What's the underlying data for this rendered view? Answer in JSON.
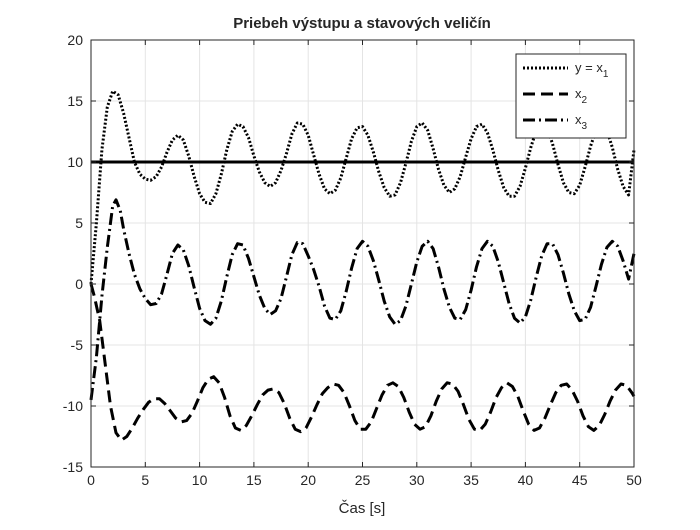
{
  "chart_data": {
    "type": "line",
    "title": "Priebeh výstupu a stavových veličín",
    "xlabel": "Čas [s]",
    "ylabel": "",
    "xlim": [
      0,
      50
    ],
    "ylim": [
      -15,
      20
    ],
    "xticks": [
      0,
      5,
      10,
      15,
      20,
      25,
      30,
      35,
      40,
      45,
      50
    ],
    "yticks": [
      -15,
      -10,
      -5,
      0,
      5,
      10,
      15,
      20
    ],
    "grid": true,
    "legend_position": "top-right",
    "reference_line": {
      "y": 10
    },
    "series": [
      {
        "legend_base": "y = x",
        "legend_sub": "1",
        "style": "dotted",
        "color": "#000000",
        "points": [
          [
            0,
            0
          ],
          [
            0.5,
            5
          ],
          [
            1,
            11
          ],
          [
            1.5,
            14.5
          ],
          [
            2,
            15.8
          ],
          [
            2.5,
            15.5
          ],
          [
            3,
            14
          ],
          [
            3.5,
            12
          ],
          [
            4,
            10
          ],
          [
            4.5,
            9
          ],
          [
            5,
            8.6
          ],
          [
            5.5,
            8.5
          ],
          [
            6,
            8.8
          ],
          [
            6.5,
            9.6
          ],
          [
            7,
            10.8
          ],
          [
            7.5,
            11.8
          ],
          [
            8,
            12.2
          ],
          [
            8.5,
            11.8
          ],
          [
            9,
            10.5
          ],
          [
            9.5,
            8.8
          ],
          [
            10,
            7.4
          ],
          [
            10.5,
            6.7
          ],
          [
            11,
            6.6
          ],
          [
            11.5,
            7.4
          ],
          [
            12,
            9
          ],
          [
            12.5,
            11
          ],
          [
            13,
            12.5
          ],
          [
            13.5,
            13.1
          ],
          [
            14,
            12.9
          ],
          [
            14.5,
            12
          ],
          [
            15,
            10.5
          ],
          [
            15.5,
            9.2
          ],
          [
            16,
            8.3
          ],
          [
            16.5,
            8
          ],
          [
            17,
            8.3
          ],
          [
            17.5,
            9.3
          ],
          [
            18,
            10.7
          ],
          [
            18.5,
            12.3
          ],
          [
            19,
            13.2
          ],
          [
            19.5,
            13.1
          ],
          [
            20,
            12.2
          ],
          [
            20.5,
            10.6
          ],
          [
            21,
            9
          ],
          [
            21.5,
            7.8
          ],
          [
            22,
            7.4
          ],
          [
            22.5,
            7.7
          ],
          [
            23,
            8.7
          ],
          [
            23.5,
            10.3
          ],
          [
            24,
            11.9
          ],
          [
            24.5,
            12.8
          ],
          [
            25,
            12.9
          ],
          [
            25.5,
            12.2
          ],
          [
            26,
            10.8
          ],
          [
            26.5,
            9.2
          ],
          [
            27,
            7.9
          ],
          [
            27.5,
            7.2
          ],
          [
            28,
            7.3
          ],
          [
            28.5,
            8.3
          ],
          [
            29,
            9.9
          ],
          [
            29.5,
            11.7
          ],
          [
            30,
            12.9
          ],
          [
            30.5,
            13.2
          ],
          [
            31,
            12.6
          ],
          [
            31.5,
            11.1
          ],
          [
            32,
            9.4
          ],
          [
            32.5,
            8.1
          ],
          [
            33,
            7.5
          ],
          [
            33.5,
            7.8
          ],
          [
            34,
            8.8
          ],
          [
            34.5,
            10.4
          ],
          [
            35,
            11.9
          ],
          [
            35.5,
            12.9
          ],
          [
            36,
            13.1
          ],
          [
            36.5,
            12.4
          ],
          [
            37,
            11
          ],
          [
            37.5,
            9.3
          ],
          [
            38,
            7.9
          ],
          [
            38.5,
            7.2
          ],
          [
            39,
            7.2
          ],
          [
            39.5,
            8
          ],
          [
            40,
            9.5
          ],
          [
            40.5,
            11.2
          ],
          [
            41,
            12.6
          ],
          [
            41.5,
            13.2
          ],
          [
            42,
            12.8
          ],
          [
            42.5,
            11.5
          ],
          [
            43,
            9.8
          ],
          [
            43.5,
            8.3
          ],
          [
            44,
            7.5
          ],
          [
            44.5,
            7.4
          ],
          [
            45,
            8.1
          ],
          [
            45.5,
            9.6
          ],
          [
            46,
            11.3
          ],
          [
            46.5,
            12.6
          ],
          [
            47,
            13.1
          ],
          [
            47.5,
            12.6
          ],
          [
            48,
            11.2
          ],
          [
            48.5,
            9.4
          ],
          [
            49,
            8
          ],
          [
            49.5,
            7.3
          ],
          [
            50,
            11
          ]
        ]
      },
      {
        "legend_base": "x",
        "legend_sub": "2",
        "style": "dashed",
        "color": "#000000",
        "points": [
          [
            0,
            0
          ],
          [
            0.3,
            -1
          ],
          [
            0.8,
            -3
          ],
          [
            1.3,
            -6.5
          ],
          [
            1.8,
            -10
          ],
          [
            2.3,
            -12.2
          ],
          [
            2.8,
            -12.8
          ],
          [
            3.3,
            -12.5
          ],
          [
            3.8,
            -11.8
          ],
          [
            4.3,
            -11
          ],
          [
            4.8,
            -10.3
          ],
          [
            5.3,
            -9.7
          ],
          [
            5.8,
            -9.4
          ],
          [
            6.3,
            -9.4
          ],
          [
            6.8,
            -9.8
          ],
          [
            7.3,
            -10.4
          ],
          [
            7.8,
            -11
          ],
          [
            8.3,
            -11.3
          ],
          [
            8.8,
            -11.2
          ],
          [
            9.3,
            -10.6
          ],
          [
            9.8,
            -9.6
          ],
          [
            10.3,
            -8.5
          ],
          [
            10.8,
            -7.8
          ],
          [
            11.3,
            -7.6
          ],
          [
            11.8,
            -8.1
          ],
          [
            12.3,
            -9.3
          ],
          [
            12.8,
            -10.8
          ],
          [
            13.3,
            -11.8
          ],
          [
            13.8,
            -12
          ],
          [
            14.3,
            -11.6
          ],
          [
            14.8,
            -10.8
          ],
          [
            15.3,
            -9.9
          ],
          [
            15.8,
            -9.1
          ],
          [
            16.3,
            -8.7
          ],
          [
            16.8,
            -8.6
          ],
          [
            17.3,
            -8.9
          ],
          [
            17.8,
            -9.8
          ],
          [
            18.3,
            -11
          ],
          [
            18.8,
            -11.9
          ],
          [
            19.3,
            -12.1
          ],
          [
            19.8,
            -11.8
          ],
          [
            20.3,
            -10.9
          ],
          [
            20.8,
            -9.9
          ],
          [
            21.3,
            -9
          ],
          [
            21.8,
            -8.5
          ],
          [
            22.3,
            -8.2
          ],
          [
            22.8,
            -8.3
          ],
          [
            23.3,
            -8.9
          ],
          [
            23.8,
            -10
          ],
          [
            24.3,
            -11.2
          ],
          [
            24.8,
            -11.9
          ],
          [
            25.3,
            -11.9
          ],
          [
            25.8,
            -11.3
          ],
          [
            26.3,
            -10.2
          ],
          [
            26.8,
            -9.1
          ],
          [
            27.3,
            -8.3
          ],
          [
            27.8,
            -8.1
          ],
          [
            28.3,
            -8.4
          ],
          [
            28.8,
            -9.3
          ],
          [
            29.3,
            -10.5
          ],
          [
            29.8,
            -11.5
          ],
          [
            30.3,
            -11.9
          ],
          [
            30.8,
            -11.7
          ],
          [
            31.3,
            -10.8
          ],
          [
            31.8,
            -9.6
          ],
          [
            32.3,
            -8.6
          ],
          [
            32.8,
            -8.1
          ],
          [
            33.3,
            -8.2
          ],
          [
            33.8,
            -8.8
          ],
          [
            34.3,
            -9.9
          ],
          [
            34.8,
            -11.1
          ],
          [
            35.3,
            -11.9
          ],
          [
            35.8,
            -12
          ],
          [
            36.3,
            -11.5
          ],
          [
            36.8,
            -10.5
          ],
          [
            37.3,
            -9.3
          ],
          [
            37.8,
            -8.5
          ],
          [
            38.3,
            -8.1
          ],
          [
            38.8,
            -8.4
          ],
          [
            39.3,
            -9.2
          ],
          [
            39.8,
            -10.4
          ],
          [
            40.3,
            -11.5
          ],
          [
            40.8,
            -12
          ],
          [
            41.3,
            -11.8
          ],
          [
            41.8,
            -11
          ],
          [
            42.3,
            -9.9
          ],
          [
            42.8,
            -8.9
          ],
          [
            43.3,
            -8.3
          ],
          [
            43.8,
            -8.2
          ],
          [
            44.3,
            -8.7
          ],
          [
            44.8,
            -9.6
          ],
          [
            45.3,
            -10.8
          ],
          [
            45.8,
            -11.7
          ],
          [
            46.3,
            -12
          ],
          [
            46.8,
            -11.6
          ],
          [
            47.3,
            -10.7
          ],
          [
            47.8,
            -9.6
          ],
          [
            48.3,
            -8.7
          ],
          [
            48.8,
            -8.2
          ],
          [
            49.3,
            -8.3
          ],
          [
            49.8,
            -8.9
          ],
          [
            50,
            -9.2
          ]
        ]
      },
      {
        "legend_base": "x",
        "legend_sub": "3",
        "style": "dashdot",
        "color": "#000000",
        "points": [
          [
            0,
            -9.5
          ],
          [
            0.5,
            -6
          ],
          [
            1,
            -1
          ],
          [
            1.5,
            3
          ],
          [
            2,
            6.4
          ],
          [
            2.3,
            6.9
          ],
          [
            2.7,
            6
          ],
          [
            3,
            4.5
          ],
          [
            3.5,
            2.5
          ],
          [
            4,
            0.8
          ],
          [
            4.5,
            -0.4
          ],
          [
            5,
            -1.2
          ],
          [
            5.5,
            -1.7
          ],
          [
            6,
            -1.6
          ],
          [
            6.5,
            -0.8
          ],
          [
            7,
            0.8
          ],
          [
            7.5,
            2.5
          ],
          [
            8,
            3.2
          ],
          [
            8.5,
            2.8
          ],
          [
            9,
            1.5
          ],
          [
            9.5,
            -0.3
          ],
          [
            10,
            -2
          ],
          [
            10.5,
            -3
          ],
          [
            11,
            -3.3
          ],
          [
            11.5,
            -2.8
          ],
          [
            12,
            -1.4
          ],
          [
            12.5,
            0.6
          ],
          [
            13,
            2.4
          ],
          [
            13.5,
            3.3
          ],
          [
            14,
            3.2
          ],
          [
            14.5,
            2.1
          ],
          [
            15,
            0.6
          ],
          [
            15.5,
            -0.9
          ],
          [
            16,
            -2
          ],
          [
            16.5,
            -2.5
          ],
          [
            17,
            -2.2
          ],
          [
            17.5,
            -1.2
          ],
          [
            18,
            0.6
          ],
          [
            18.5,
            2.4
          ],
          [
            19,
            3.4
          ],
          [
            19.5,
            3.3
          ],
          [
            20,
            2.3
          ],
          [
            20.5,
            1.2
          ],
          [
            21,
            -0.2
          ],
          [
            21.5,
            -1.8
          ],
          [
            22,
            -2.8
          ],
          [
            22.5,
            -2.9
          ],
          [
            23,
            -2.2
          ],
          [
            23.5,
            -0.6
          ],
          [
            24,
            1.3
          ],
          [
            24.5,
            2.9
          ],
          [
            25,
            3.5
          ],
          [
            25.5,
            3.1
          ],
          [
            26,
            1.9
          ],
          [
            26.5,
            0.3
          ],
          [
            27,
            -1.4
          ],
          [
            27.5,
            -2.7
          ],
          [
            28,
            -3.3
          ],
          [
            28.5,
            -3
          ],
          [
            29,
            -1.8
          ],
          [
            29.5,
            0
          ],
          [
            30,
            1.8
          ],
          [
            30.5,
            3.1
          ],
          [
            31,
            3.5
          ],
          [
            31.5,
            2.9
          ],
          [
            32,
            1.4
          ],
          [
            32.5,
            -0.4
          ],
          [
            33,
            -1.9
          ],
          [
            33.5,
            -2.8
          ],
          [
            34,
            -2.9
          ],
          [
            34.5,
            -2.1
          ],
          [
            35,
            -0.5
          ],
          [
            35.5,
            1.4
          ],
          [
            36,
            2.9
          ],
          [
            36.5,
            3.5
          ],
          [
            37,
            3.1
          ],
          [
            37.5,
            1.8
          ],
          [
            38,
            0.1
          ],
          [
            38.5,
            -1.6
          ],
          [
            39,
            -2.8
          ],
          [
            39.5,
            -3.2
          ],
          [
            40,
            -2.7
          ],
          [
            40.5,
            -1.3
          ],
          [
            41,
            0.6
          ],
          [
            41.5,
            2.3
          ],
          [
            42,
            3.3
          ],
          [
            42.5,
            3.3
          ],
          [
            43,
            2.4
          ],
          [
            43.5,
            0.9
          ],
          [
            44,
            -0.8
          ],
          [
            44.5,
            -2.2
          ],
          [
            45,
            -3
          ],
          [
            45.5,
            -2.9
          ],
          [
            46,
            -1.9
          ],
          [
            46.5,
            -0.2
          ],
          [
            47,
            1.6
          ],
          [
            47.5,
            3
          ],
          [
            48,
            3.5
          ],
          [
            48.5,
            3.1
          ],
          [
            49,
            1.9
          ],
          [
            49.5,
            0.4
          ],
          [
            50,
            2.5
          ]
        ]
      }
    ]
  }
}
